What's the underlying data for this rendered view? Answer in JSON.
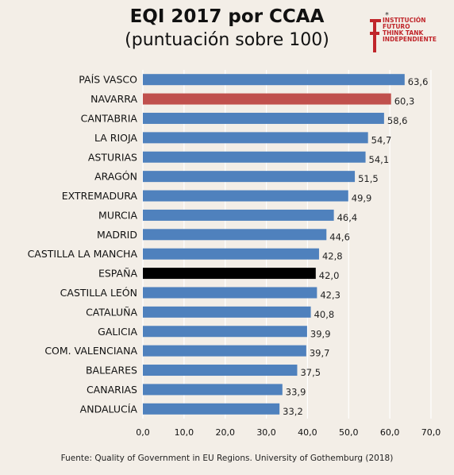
{
  "header": {
    "title": "EQI 2017 por CCAA",
    "subtitle": "(puntuación sobre 100)"
  },
  "logo": {
    "icon": "institucion-futuro-logo-icon",
    "line1": "INSTITUCIÓN",
    "line2": "FUTURO",
    "line3": "THINK TANK",
    "line4": "INDEPENDIENTE",
    "color": "#c0262b"
  },
  "source": "Fuente: Quality of Government in EU Regions. University of Gothemburg (2018)",
  "chart_data": {
    "type": "bar",
    "orientation": "horizontal",
    "categories": [
      "PAÍS VASCO",
      "NAVARRA",
      "CANTABRIA",
      "LA RIOJA",
      "ASTURIAS",
      "ARAGÓN",
      "EXTREMADURA",
      "MURCIA",
      "MADRID",
      "CASTILLA LA MANCHA",
      "ESPAÑA",
      "CASTILLA LEÓN",
      "CATALUÑA",
      "GALICIA",
      "COM. VALENCIANA",
      "BALEARES",
      "CANARIAS",
      "ANDALUCÍA"
    ],
    "values": [
      63.6,
      60.3,
      58.6,
      54.7,
      54.1,
      51.5,
      49.9,
      46.4,
      44.6,
      42.8,
      42.0,
      42.3,
      40.8,
      39.9,
      39.7,
      37.5,
      33.9,
      33.2
    ],
    "value_labels": [
      "63,6",
      "60,3",
      "58,6",
      "54,7",
      "54,1",
      "51,5",
      "49,9",
      "46,4",
      "44,6",
      "42,8",
      "42,0",
      "42,3",
      "40,8",
      "39,9",
      "39,7",
      "37,5",
      "33,9",
      "33,2"
    ],
    "bar_colors": [
      "#4f81bd",
      "#c0504d",
      "#4f81bd",
      "#4f81bd",
      "#4f81bd",
      "#4f81bd",
      "#4f81bd",
      "#4f81bd",
      "#4f81bd",
      "#4f81bd",
      "#000000",
      "#4f81bd",
      "#4f81bd",
      "#4f81bd",
      "#4f81bd",
      "#4f81bd",
      "#4f81bd",
      "#4f81bd"
    ],
    "xlim": [
      0,
      70
    ],
    "xticks": [
      0,
      10,
      20,
      30,
      40,
      50,
      60,
      70
    ],
    "xtick_labels": [
      "0,0",
      "10,0",
      "20,0",
      "30,0",
      "40,0",
      "50,0",
      "60,0",
      "70,0"
    ],
    "grid": true,
    "legend": "none"
  }
}
